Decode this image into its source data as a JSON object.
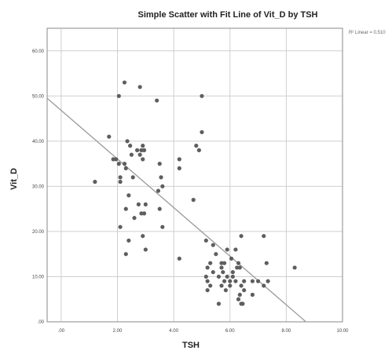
{
  "chart_data": {
    "type": "scatter",
    "title": "Simple Scatter with Fit Line of Vit_D by TSH",
    "xlabel": "TSH",
    "ylabel": "Vit_D",
    "xlim": [
      -0.5,
      10.0
    ],
    "ylim": [
      0,
      65
    ],
    "x_ticks": [
      0,
      2,
      4,
      6,
      8,
      10
    ],
    "x_tick_labels": [
      ".00",
      "2.00",
      "4.00",
      "6.00",
      "8.00",
      "10.00"
    ],
    "y_ticks": [
      0,
      10,
      20,
      30,
      40,
      50,
      60
    ],
    "y_tick_labels": [
      ".00",
      "10.00",
      "20.00",
      "30.00",
      "40.00",
      "50.00",
      "60.00"
    ],
    "grid": true,
    "fit_line": {
      "label": "R² Linear = 0.510",
      "from": [
        -0.5,
        49.5
      ],
      "to": [
        8.7,
        0
      ]
    },
    "colors": {
      "points": "#5e5e5e",
      "fit_line": "#9a9a9a",
      "grid": "#cfcfcf",
      "frame": "#8a8a8a"
    },
    "points": [
      [
        1.2,
        31
      ],
      [
        1.7,
        41
      ],
      [
        1.85,
        36
      ],
      [
        1.95,
        36
      ],
      [
        2.05,
        50
      ],
      [
        2.05,
        35
      ],
      [
        2.1,
        32
      ],
      [
        2.1,
        31
      ],
      [
        2.1,
        21
      ],
      [
        2.25,
        53
      ],
      [
        2.25,
        35
      ],
      [
        2.3,
        34
      ],
      [
        2.3,
        25
      ],
      [
        2.3,
        15
      ],
      [
        2.35,
        40
      ],
      [
        2.4,
        28
      ],
      [
        2.4,
        18
      ],
      [
        2.45,
        39
      ],
      [
        2.5,
        37
      ],
      [
        2.55,
        32
      ],
      [
        2.6,
        23
      ],
      [
        2.7,
        38
      ],
      [
        2.75,
        26
      ],
      [
        2.8,
        52
      ],
      [
        2.8,
        37
      ],
      [
        2.85,
        38
      ],
      [
        2.85,
        24
      ],
      [
        2.9,
        39
      ],
      [
        2.9,
        36
      ],
      [
        2.9,
        19
      ],
      [
        2.95,
        38
      ],
      [
        2.95,
        24
      ],
      [
        3.0,
        26
      ],
      [
        3.0,
        16
      ],
      [
        3.4,
        49
      ],
      [
        3.45,
        29
      ],
      [
        3.5,
        35
      ],
      [
        3.5,
        25
      ],
      [
        3.55,
        32
      ],
      [
        3.6,
        30
      ],
      [
        3.6,
        21
      ],
      [
        4.2,
        36
      ],
      [
        4.2,
        34
      ],
      [
        4.2,
        14
      ],
      [
        4.7,
        27
      ],
      [
        4.8,
        39
      ],
      [
        4.9,
        38
      ],
      [
        5.0,
        50
      ],
      [
        5.0,
        42
      ],
      [
        5.15,
        18
      ],
      [
        5.15,
        10
      ],
      [
        5.2,
        12
      ],
      [
        5.2,
        9
      ],
      [
        5.2,
        7
      ],
      [
        5.3,
        13
      ],
      [
        5.3,
        8
      ],
      [
        5.4,
        17
      ],
      [
        5.4,
        11
      ],
      [
        5.5,
        15
      ],
      [
        5.6,
        10
      ],
      [
        5.6,
        4
      ],
      [
        5.7,
        13
      ],
      [
        5.7,
        12
      ],
      [
        5.7,
        8
      ],
      [
        5.75,
        11
      ],
      [
        5.8,
        13
      ],
      [
        5.8,
        9
      ],
      [
        5.85,
        7
      ],
      [
        5.9,
        16
      ],
      [
        5.9,
        10
      ],
      [
        6.0,
        9
      ],
      [
        6.0,
        8
      ],
      [
        6.05,
        14
      ],
      [
        6.1,
        11
      ],
      [
        6.1,
        10
      ],
      [
        6.2,
        16
      ],
      [
        6.2,
        9
      ],
      [
        6.25,
        12
      ],
      [
        6.3,
        13
      ],
      [
        6.3,
        5
      ],
      [
        6.35,
        12
      ],
      [
        6.35,
        6
      ],
      [
        6.4,
        19
      ],
      [
        6.4,
        8
      ],
      [
        6.4,
        4
      ],
      [
        6.45,
        4
      ],
      [
        6.5,
        9
      ],
      [
        6.5,
        7
      ],
      [
        6.8,
        9
      ],
      [
        6.8,
        6
      ],
      [
        7.0,
        9
      ],
      [
        7.2,
        19
      ],
      [
        7.2,
        8
      ],
      [
        7.3,
        13
      ],
      [
        7.35,
        9
      ],
      [
        8.3,
        12
      ]
    ]
  }
}
